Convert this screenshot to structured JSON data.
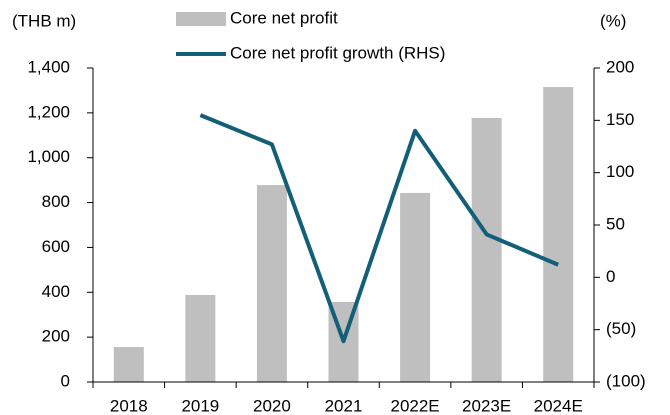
{
  "chart_data": {
    "type": "combo",
    "y_label": "(THB m)",
    "y2_label": "(%)",
    "categories": [
      "2018",
      "2019",
      "2020",
      "2021",
      "2022E",
      "2023E",
      "2024E"
    ],
    "series": [
      {
        "name": "Core net profit",
        "type": "bar",
        "color": "#bfbfbf",
        "values": [
          156,
          388,
          878,
          357,
          843,
          1177,
          1315
        ]
      },
      {
        "name": "Core net profit growth (RHS)",
        "type": "line",
        "axis": "y2",
        "color": "#135e78",
        "values": [
          null,
          155,
          127,
          -61,
          140,
          41,
          12
        ]
      }
    ],
    "ylim": [
      0,
      1400
    ],
    "yticks": [
      0,
      200,
      400,
      600,
      800,
      {
        "value": 1000,
        "label": "1,000"
      },
      {
        "value": 1200,
        "label": "1,200"
      },
      {
        "value": 1400,
        "label": "1,400"
      }
    ],
    "y2lim": [
      -100,
      200
    ],
    "y2ticks": [
      {
        "value": -100,
        "label": "(100)"
      },
      {
        "value": -50,
        "label": "(50)"
      },
      0,
      50,
      100,
      150,
      200
    ],
    "grid": false
  }
}
